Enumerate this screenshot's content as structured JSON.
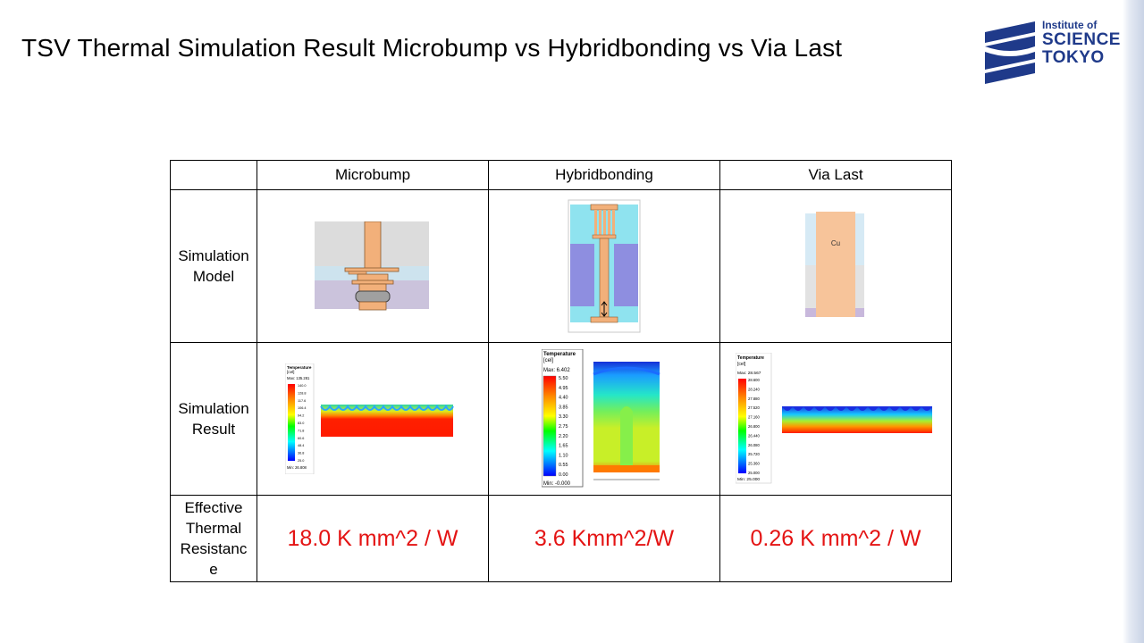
{
  "title": "TSV Thermal Simulation Result Microbump vs Hybridbonding vs Via Last",
  "logo": {
    "line1": "Institute of",
    "line2": "SCIENCE",
    "line3": "TOKYO"
  },
  "table": {
    "columns": [
      "",
      "Microbump",
      "Hybridbonding",
      "Via Last"
    ],
    "rows": [
      {
        "label_lines": [
          "Simulation",
          "Model"
        ]
      },
      {
        "label_lines": [
          "Simulation",
          "Result"
        ]
      },
      {
        "label_lines": [
          "Effective",
          "Thermal",
          "Resistanc",
          "e"
        ],
        "values": [
          "18.0 K mm^2 / W",
          "3.6 Kmm^2/W",
          "0.26 K mm^2 / W"
        ]
      }
    ]
  },
  "models": {
    "via_last_label": "Cu"
  },
  "legends": {
    "microbump": {
      "title": "Temperature",
      "unit": "[cel]",
      "max": "Max: 135.281",
      "min": "Min: 26.808",
      "ticks": [
        "140.0",
        "128.8",
        "117.6",
        "106.4",
        "94.2",
        "83.0",
        "71.8",
        "60.6",
        "48.4",
        "36.8",
        "25.0"
      ]
    },
    "hybridbonding": {
      "title": "Temperature",
      "unit": "[cel]",
      "max": "Max: 6.402",
      "min": "Min: -0.000",
      "ticks": [
        "5.50",
        "4.95",
        "4.40",
        "3.85",
        "3.30",
        "2.75",
        "2.20",
        "1.65",
        "1.10",
        "0.55",
        "0.00"
      ]
    },
    "vialast": {
      "title": "Temperature",
      "unit": "[cel]",
      "max": "Max: 28.567",
      "min": "Min: 25.000",
      "ticks": [
        "28.600",
        "28.240",
        "27.880",
        "27.520",
        "27.160",
        "26.800",
        "26.440",
        "26.080",
        "25.720",
        "25.360",
        "25.000"
      ]
    }
  },
  "colors": {
    "accent_red": "#e41414",
    "logo_blue": "#1f3a8a"
  }
}
